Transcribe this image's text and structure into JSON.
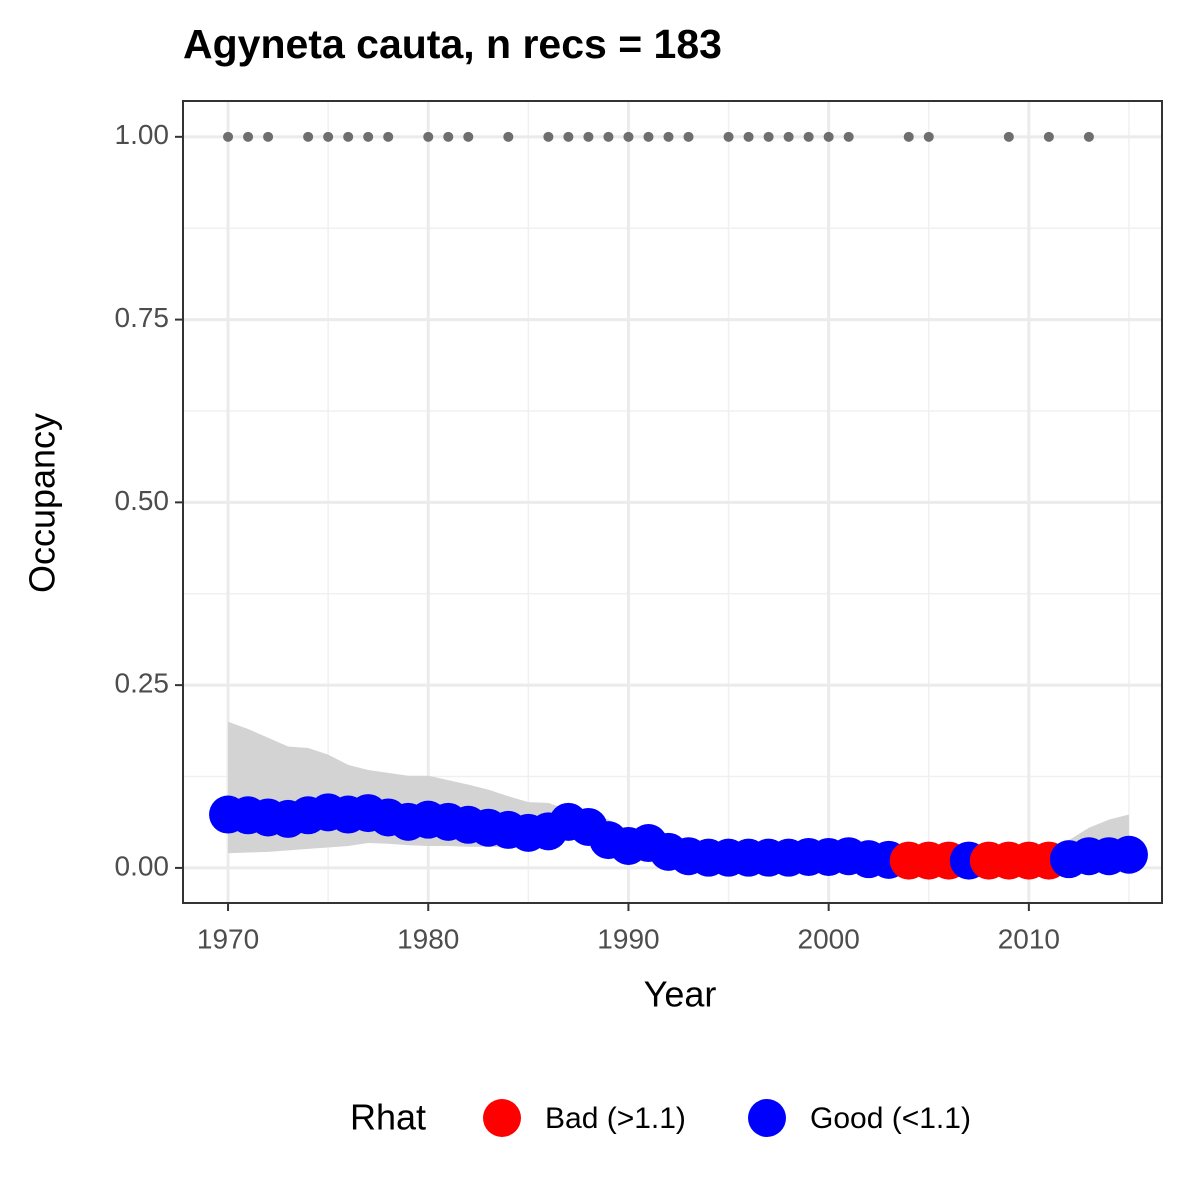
{
  "chart_data": {
    "type": "scatter",
    "title": "Agyneta cauta, n recs = 183",
    "x_label": "Year",
    "y_label": "Occupancy",
    "x": [
      1970,
      1971,
      1972,
      1973,
      1974,
      1975,
      1976,
      1977,
      1978,
      1979,
      1980,
      1981,
      1982,
      1983,
      1984,
      1985,
      1986,
      1987,
      1988,
      1989,
      1990,
      1991,
      1992,
      1993,
      1994,
      1995,
      1996,
      1997,
      1998,
      1999,
      2000,
      2001,
      2002,
      2003,
      2004,
      2005,
      2006,
      2007,
      2008,
      2009,
      2010,
      2011,
      2012,
      2013,
      2014,
      2015
    ],
    "values": [
      0.073,
      0.072,
      0.069,
      0.067,
      0.072,
      0.076,
      0.073,
      0.075,
      0.069,
      0.063,
      0.066,
      0.063,
      0.059,
      0.055,
      0.052,
      0.048,
      0.05,
      0.063,
      0.056,
      0.038,
      0.03,
      0.034,
      0.022,
      0.016,
      0.014,
      0.014,
      0.014,
      0.014,
      0.014,
      0.015,
      0.015,
      0.016,
      0.012,
      0.011,
      0.01,
      0.01,
      0.01,
      0.01,
      0.01,
      0.01,
      0.01,
      0.01,
      0.012,
      0.016,
      0.016,
      0.018
    ],
    "upper": [
      0.2,
      0.19,
      0.178,
      0.166,
      0.164,
      0.155,
      0.141,
      0.134,
      0.13,
      0.126,
      0.126,
      0.12,
      0.114,
      0.107,
      0.098,
      0.09,
      0.089,
      0.079,
      0.079,
      0.066,
      0.052,
      0.052,
      0.038,
      0.031,
      0.027,
      0.027,
      0.027,
      0.027,
      0.027,
      0.027,
      0.027,
      0.027,
      0.027,
      0.027,
      0.022,
      0.022,
      0.022,
      0.022,
      0.022,
      0.022,
      0.022,
      0.022,
      0.038,
      0.055,
      0.066,
      0.073
    ],
    "lower": [
      0.02,
      0.021,
      0.022,
      0.024,
      0.026,
      0.028,
      0.03,
      0.034,
      0.033,
      0.031,
      0.03,
      0.03,
      0.029,
      0.029,
      0.028,
      0.028,
      0.03,
      0.04,
      0.035,
      0.02,
      0.015,
      0.012,
      0.006,
      0.004,
      0.003,
      0.003,
      0.003,
      0.003,
      0.003,
      0.003,
      0.003,
      0.003,
      0.002,
      0.002,
      0.002,
      0.002,
      0.002,
      0.002,
      0.002,
      0.002,
      0.002,
      0.002,
      0.002,
      0.003,
      0.003,
      0.004
    ],
    "rhat_class": [
      1,
      1,
      1,
      1,
      1,
      1,
      1,
      1,
      1,
      1,
      1,
      1,
      1,
      1,
      1,
      1,
      1,
      1,
      1,
      1,
      1,
      1,
      1,
      1,
      1,
      1,
      1,
      1,
      1,
      1,
      1,
      1,
      1,
      1,
      0,
      0,
      0,
      1,
      0,
      0,
      0,
      0,
      1,
      1,
      1,
      1
    ],
    "ribbon_color": "#d3d3d3",
    "records": {
      "color": "#6e6e6e",
      "x": [
        1970,
        1971,
        1972,
        1974,
        1975,
        1976,
        1977,
        1978,
        1980,
        1981,
        1982,
        1984,
        1986,
        1987,
        1988,
        1989,
        1990,
        1991,
        1992,
        1993,
        1995,
        1996,
        1997,
        1998,
        1999,
        2000,
        2001,
        2004,
        2005,
        2009,
        2011,
        2013
      ],
      "values": [
        1,
        1,
        1,
        1,
        1,
        1,
        1,
        1,
        1,
        1,
        1,
        1,
        1,
        1,
        1,
        1,
        1,
        1,
        1,
        1,
        1,
        1,
        1,
        1,
        1,
        1,
        1,
        1,
        1,
        1,
        1,
        1
      ]
    },
    "legend": {
      "title": "Rhat",
      "position": "bottom",
      "entries": [
        {
          "name": "Bad (>1.1)",
          "color": "#ff0000"
        },
        {
          "name": "Good (<1.1)",
          "color": "#0000ff"
        }
      ]
    },
    "xlim": [
      1967.75,
      2016.65
    ],
    "ylim": [
      -0.048,
      1.049
    ],
    "xticks": [
      1970,
      1980,
      1990,
      2000,
      2010
    ],
    "yticks": [
      {
        "value": 0,
        "label": "0.00"
      },
      {
        "value": 0.25,
        "label": "0.25"
      },
      {
        "value": 0.5,
        "label": "0.50"
      },
      {
        "value": 0.75,
        "label": "0.75"
      },
      {
        "value": 1,
        "label": "1.00"
      }
    ],
    "minor_xticks": [
      1975,
      1985,
      1995,
      2005,
      2015
    ],
    "minor_yticks": [
      0.125,
      0.375,
      0.625,
      0.875
    ],
    "grid": true
  }
}
